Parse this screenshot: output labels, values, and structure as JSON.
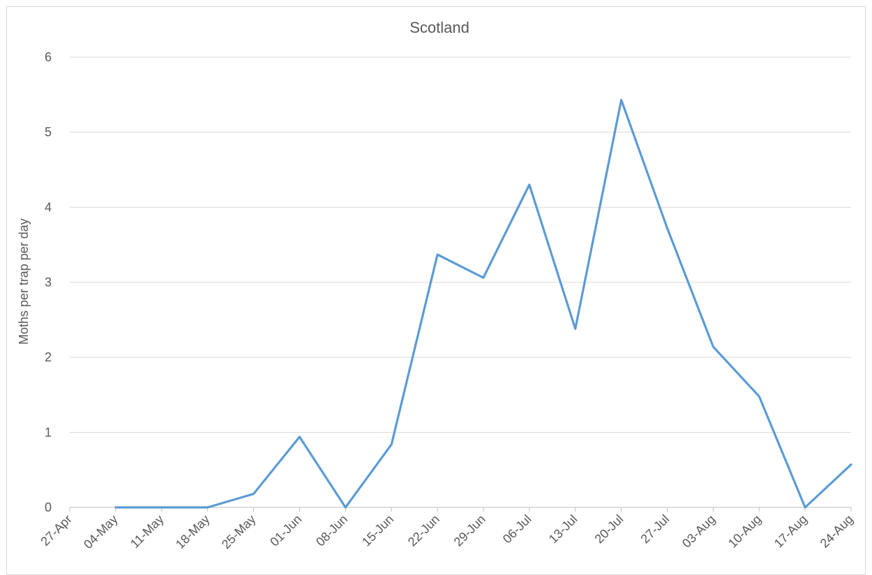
{
  "chart_data": {
    "type": "line",
    "title": "Scotland",
    "xlabel": "",
    "ylabel": "Moths per trap per day",
    "categories": [
      "27-Apr",
      "04-May",
      "11-May",
      "18-May",
      "25-May",
      "01-Jun",
      "08-Jun",
      "15-Jun",
      "22-Jun",
      "29-Jun",
      "06-Jul",
      "13-Jul",
      "20-Jul",
      "27-Jul",
      "03-Aug",
      "10-Aug",
      "17-Aug",
      "24-Aug"
    ],
    "y_ticks": [
      "0",
      "1",
      "2",
      "3",
      "4",
      "5",
      "6"
    ],
    "ylim": [
      0,
      6
    ],
    "grid": true,
    "legend": "none",
    "series": [
      {
        "color": "#5b9bd5",
        "values": [
          null,
          0,
          0,
          0,
          0.18,
          0.94,
          0,
          0.84,
          3.37,
          3.06,
          4.3,
          2.38,
          5.43,
          3.72,
          2.14,
          1.48,
          0,
          0.57
        ]
      }
    ]
  }
}
